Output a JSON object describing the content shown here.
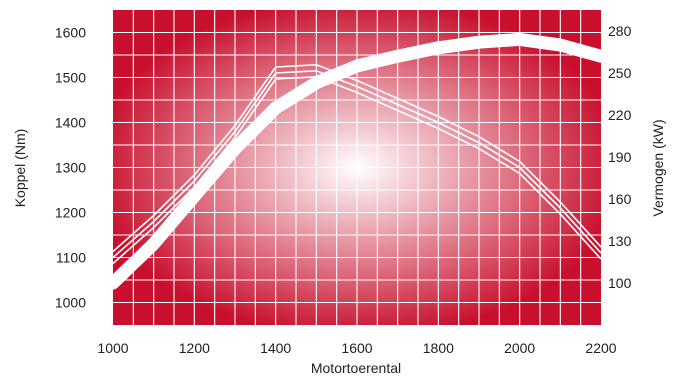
{
  "chart_data": {
    "type": "line",
    "title": "",
    "xlabel": "Motortoerental",
    "ylabel_left": "Koppel (Nm)",
    "ylabel_right": "Vermogen (kW)",
    "xlim": [
      1000,
      2200
    ],
    "ylim_left": [
      950,
      1650
    ],
    "ylim_right": [
      70,
      295
    ],
    "x_ticks": [
      1000,
      1200,
      1400,
      1600,
      1800,
      2000,
      2200
    ],
    "y_left_ticks": [
      1000,
      1100,
      1200,
      1300,
      1400,
      1500,
      1600
    ],
    "y_right_ticks": [
      100,
      130,
      160,
      190,
      220,
      250,
      280
    ],
    "grid": true,
    "colors": {
      "background_center": "#ffffff",
      "background_edge": "#c8102e",
      "grid": "#ffffff",
      "lines": "#ffffff"
    },
    "series": [
      {
        "axis": "left",
        "style": "triple-thin",
        "points": [
          [
            1000,
            1100
          ],
          [
            1100,
            1180
          ],
          [
            1200,
            1270
          ],
          [
            1300,
            1380
          ],
          [
            1400,
            1510
          ],
          [
            1500,
            1515
          ],
          [
            1600,
            1480
          ],
          [
            1700,
            1440
          ],
          [
            1800,
            1400
          ],
          [
            1900,
            1355
          ],
          [
            2000,
            1300
          ],
          [
            2100,
            1210
          ],
          [
            2200,
            1110
          ]
        ]
      },
      {
        "axis": "right",
        "style": "thick",
        "points": [
          [
            1000,
            100
          ],
          [
            1100,
            128
          ],
          [
            1200,
            162
          ],
          [
            1300,
            196
          ],
          [
            1400,
            225
          ],
          [
            1500,
            243
          ],
          [
            1600,
            255
          ],
          [
            1700,
            262
          ],
          [
            1800,
            268
          ],
          [
            1900,
            272
          ],
          [
            2000,
            274
          ],
          [
            2100,
            270
          ],
          [
            2200,
            262
          ]
        ]
      }
    ]
  }
}
